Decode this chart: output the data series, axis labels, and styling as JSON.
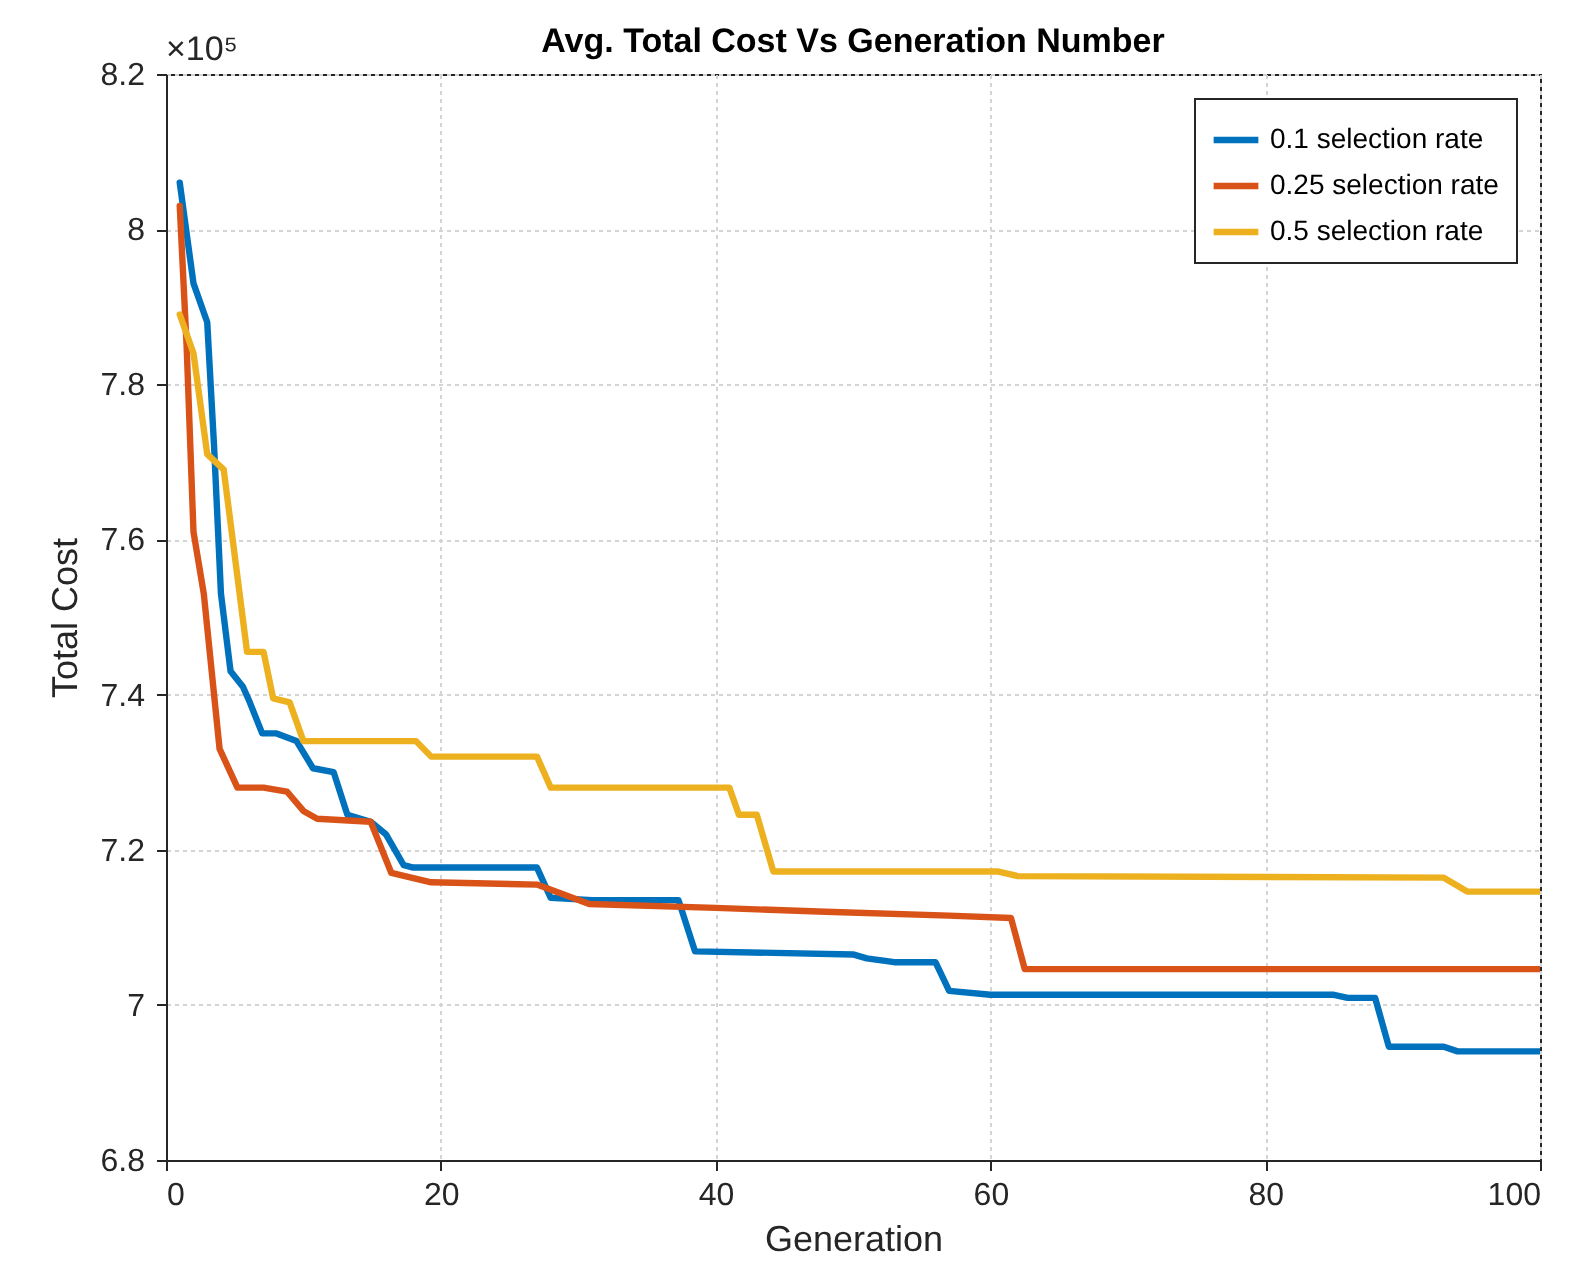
{
  "chart_data": {
    "type": "line",
    "title": "Avg. Total Cost Vs Generation Number",
    "xlabel": "Generation",
    "ylabel": "Total Cost",
    "annotations": [
      "×10⁵"
    ],
    "xlim": [
      0,
      100
    ],
    "xticks": [
      0,
      20,
      40,
      60,
      80,
      100
    ],
    "ylim": [
      6.8,
      8.2
    ],
    "yticks": [
      6.8,
      7,
      7.2,
      7.4,
      7.6,
      7.8,
      8,
      8.2
    ],
    "grid": true,
    "legend": "top right",
    "line_style": "solid",
    "series": [
      {
        "name": "0.1 selection rate",
        "color": "#0072bd",
        "x": [
          1,
          2,
          3,
          3.5,
          4,
          4.7,
          5.6,
          6.1,
          7,
          8,
          9.5,
          10.7,
          12.2,
          13.2,
          14.9,
          16,
          17.3,
          18,
          27,
          28,
          31,
          37.3,
          38.5,
          50,
          51,
          53,
          56,
          57,
          60,
          85,
          86,
          88,
          89,
          93,
          94,
          100
        ],
        "values": [
          8.06,
          7.93,
          7.88,
          7.72,
          7.53,
          7.43,
          7.41,
          7.39,
          7.35,
          7.35,
          7.34,
          7.305,
          7.3,
          7.245,
          7.236,
          7.22,
          7.18,
          7.177,
          7.177,
          7.138,
          7.135,
          7.135,
          7.069,
          7.065,
          7.06,
          7.055,
          7.055,
          7.018,
          7.013,
          7.013,
          7.009,
          7.009,
          6.946,
          6.946,
          6.94,
          6.94
        ]
      },
      {
        "name": "0.25 selection rate",
        "color": "#d95319",
        "x": [
          1,
          1.5,
          2,
          2.75,
          3.9,
          5.2,
          7.1,
          8.8,
          10,
          11,
          14.9,
          16.4,
          19.3,
          27,
          30.8,
          40,
          48,
          57,
          61.5,
          62.5,
          100
        ],
        "values": [
          8.03,
          7.85,
          7.61,
          7.53,
          7.33,
          7.28,
          7.28,
          7.275,
          7.25,
          7.24,
          7.236,
          7.17,
          7.158,
          7.155,
          7.13,
          7.125,
          7.12,
          7.115,
          7.112,
          7.046,
          7.046
        ]
      },
      {
        "name": "0.5 selection rate",
        "color": "#edb120",
        "x": [
          1,
          2,
          3,
          4.2,
          5.9,
          7.1,
          7.8,
          9,
          10,
          18.2,
          19.3,
          27,
          28,
          41,
          41.7,
          43,
          44.2,
          60.5,
          62,
          93,
          94.7,
          100
        ],
        "values": [
          7.89,
          7.84,
          7.71,
          7.69,
          7.455,
          7.455,
          7.395,
          7.39,
          7.34,
          7.34,
          7.32,
          7.32,
          7.28,
          7.28,
          7.245,
          7.245,
          7.172,
          7.172,
          7.166,
          7.164,
          7.146,
          7.146
        ]
      }
    ]
  }
}
